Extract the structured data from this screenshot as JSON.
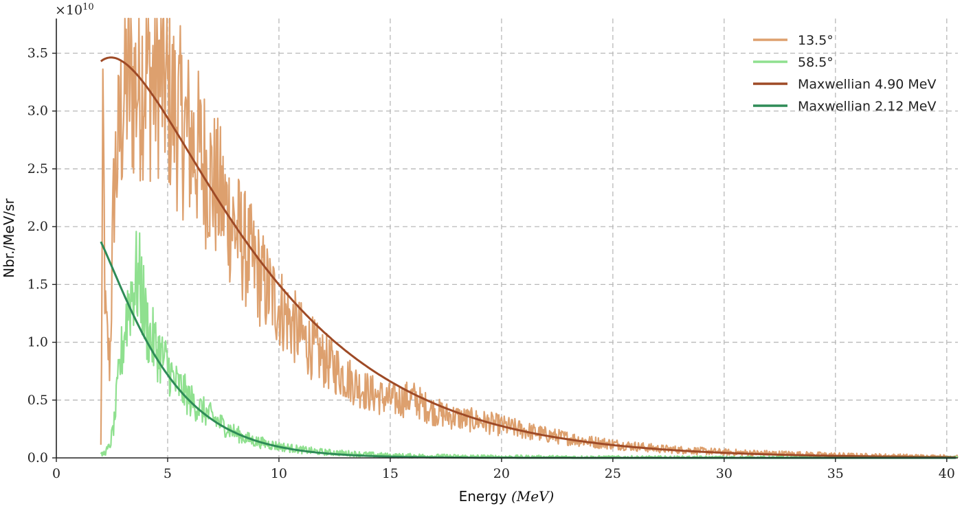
{
  "chart_data": {
    "type": "line",
    "title": "",
    "xlabel_text": "Energy ",
    "xlabel_unit": "(MeV)",
    "ylabel": "Nbr./MeV/sr",
    "y_multiplier": "×10",
    "y_multiplier_exp": "10",
    "xlim": [
      0,
      40.5
    ],
    "ylim": [
      0,
      3.8
    ],
    "x_ticks": [
      0,
      5,
      10,
      15,
      20,
      25,
      30,
      35,
      40
    ],
    "x_tick_labels": [
      "0",
      "5",
      "10",
      "15",
      "20",
      "25",
      "30",
      "35",
      "40"
    ],
    "y_ticks": [
      0,
      0.5,
      1.0,
      1.5,
      2.0,
      2.5,
      3.0,
      3.5
    ],
    "y_tick_labels": [
      "0.0",
      "0.5",
      "1.0",
      "1.5",
      "2.0",
      "2.5",
      "3.0",
      "3.5"
    ],
    "grid": true,
    "legend_position": "top-right",
    "series": [
      {
        "name": "13.5°",
        "kind": "measured",
        "color": "#dda06e",
        "x": [
          2.0,
          2.1,
          2.2,
          2.4,
          2.6,
          2.8,
          3.0,
          3.2,
          3.5,
          3.8,
          4.0,
          4.3,
          4.6,
          4.9,
          5.2,
          5.6,
          6.0,
          6.5,
          7.0,
          7.5,
          8.0,
          8.5,
          9.0,
          9.5,
          10.0,
          10.5,
          11.0,
          11.5,
          12.0,
          12.5,
          13.0,
          13.5,
          14.0,
          14.5,
          15.0,
          15.5,
          16.0,
          16.5,
          17.0,
          17.5,
          18.0,
          18.5,
          19.0,
          19.5,
          20.0,
          21.0,
          22.0,
          23.0,
          24.0,
          25.0,
          26.0,
          27.0,
          28.0,
          29.0,
          30.0,
          31.0,
          32.0,
          33.0,
          34.0,
          35.0,
          36.0,
          37.0,
          38.0,
          39.0,
          40.0,
          40.5
        ],
        "y": [
          0.1,
          2.9,
          1.2,
          0.8,
          2.4,
          2.7,
          3.1,
          3.3,
          3.2,
          3.3,
          3.4,
          3.25,
          3.35,
          3.2,
          3.05,
          2.9,
          2.75,
          2.6,
          2.4,
          2.2,
          2.0,
          1.8,
          1.62,
          1.45,
          1.32,
          1.18,
          1.05,
          0.95,
          0.85,
          0.78,
          0.7,
          0.63,
          0.57,
          0.53,
          0.5,
          0.5,
          0.52,
          0.45,
          0.4,
          0.37,
          0.35,
          0.33,
          0.32,
          0.3,
          0.28,
          0.24,
          0.2,
          0.17,
          0.14,
          0.12,
          0.1,
          0.08,
          0.07,
          0.06,
          0.05,
          0.045,
          0.04,
          0.035,
          0.03,
          0.025,
          0.02,
          0.018,
          0.015,
          0.012,
          0.01,
          0.01
        ]
      },
      {
        "name": "58.5°",
        "kind": "measured",
        "color": "#8fe08f",
        "x": [
          2.0,
          2.2,
          2.4,
          2.6,
          2.8,
          3.0,
          3.2,
          3.4,
          3.6,
          3.8,
          4.0,
          4.2,
          4.5,
          4.8,
          5.0,
          5.3,
          5.6,
          6.0,
          6.5,
          7.0,
          7.5,
          8.0,
          8.5,
          9.0,
          9.5,
          10.0,
          11.0,
          12.0,
          13.0,
          14.0,
          15.0,
          16.0,
          17.0,
          18.0,
          19.0,
          20.0,
          22.0,
          24.0,
          26.0,
          28.0,
          30.0,
          40.5
        ],
        "y": [
          0.02,
          0.05,
          0.1,
          0.3,
          0.7,
          1.0,
          1.3,
          1.45,
          1.55,
          1.5,
          1.2,
          1.05,
          0.95,
          0.85,
          0.8,
          0.65,
          0.6,
          0.5,
          0.42,
          0.35,
          0.28,
          0.22,
          0.17,
          0.14,
          0.12,
          0.1,
          0.07,
          0.05,
          0.04,
          0.03,
          0.02,
          0.018,
          0.015,
          0.012,
          0.01,
          0.008,
          0.006,
          0.004,
          0.003,
          0.002,
          0.001,
          0.0
        ]
      },
      {
        "name": "Maxwellian 4.90 MeV",
        "kind": "fit",
        "color": "#9e4a26",
        "temperature": 4.9,
        "x_start": 2.0,
        "x_end": 40.5,
        "y_at_x_start": 3.43
      },
      {
        "name": "Maxwellian 2.12 MeV",
        "kind": "fit",
        "color": "#2e8b57",
        "temperature": 2.12,
        "x_start": 2.0,
        "x_end": 40.5,
        "y_at_x_start": 1.87
      }
    ]
  }
}
